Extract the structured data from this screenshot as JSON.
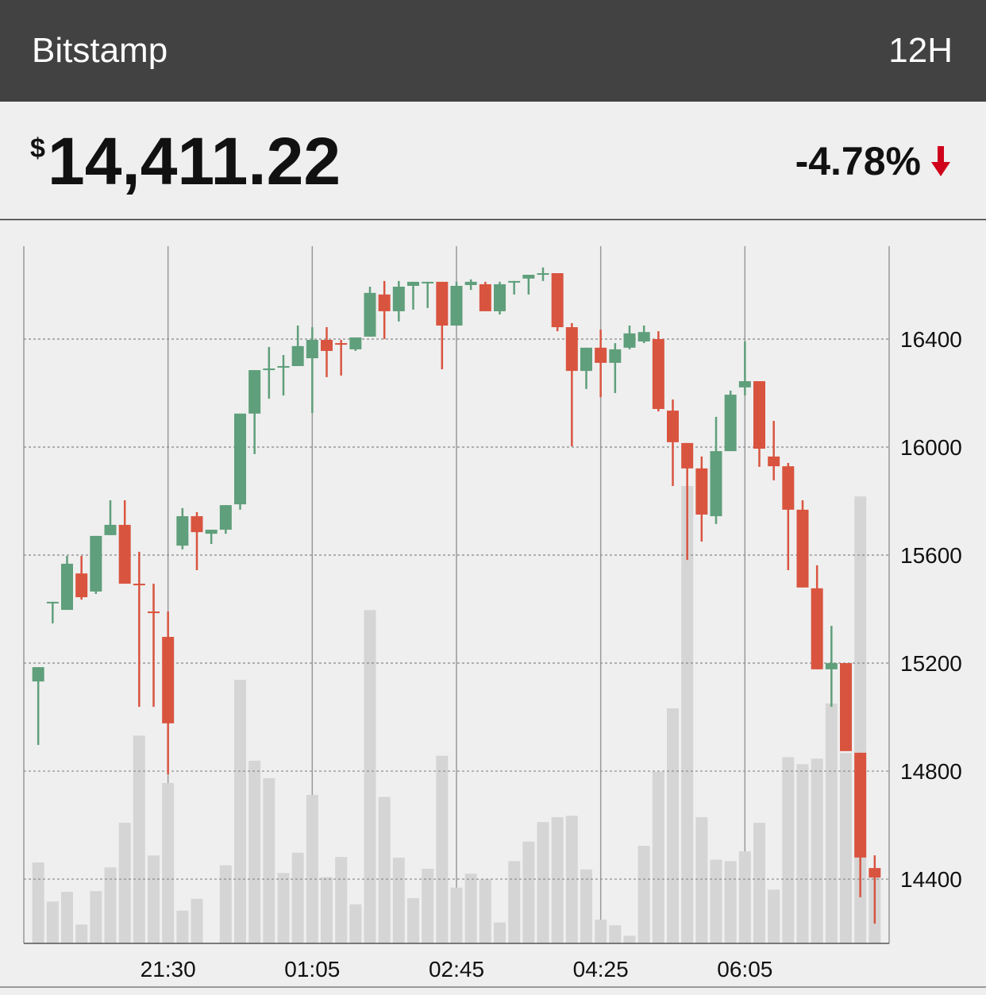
{
  "header": {
    "title": "Bitstamp",
    "range": "12H",
    "currency": "$",
    "price": "14,411.22",
    "change": "-4.78%"
  },
  "chart_data": {
    "type": "candlestick",
    "categories": [
      null,
      null,
      null,
      null,
      null,
      null,
      null,
      null,
      null,
      "21:30",
      null,
      null,
      null,
      null,
      null,
      null,
      null,
      null,
      null,
      "01:05",
      null,
      null,
      null,
      null,
      null,
      null,
      null,
      null,
      null,
      "02:45",
      null,
      null,
      null,
      null,
      null,
      null,
      null,
      null,
      null,
      "04:25",
      null,
      null,
      null,
      null,
      null,
      null,
      null,
      null,
      null,
      "06:05",
      null,
      null,
      null,
      null,
      null,
      null,
      null,
      null,
      null
    ],
    "open": [
      15132,
      15421,
      15397,
      15532,
      15465,
      15674,
      15712,
      15494,
      15391,
      15297,
      15635,
      15744,
      15679,
      15694,
      15788,
      16124,
      16285,
      16294,
      16300,
      16329,
      16397,
      16385,
      16362,
      16409,
      16565,
      16503,
      16597,
      16606,
      16612,
      16450,
      16600,
      16603,
      16503,
      16609,
      16624,
      16638,
      16644,
      16444,
      16282,
      16368,
      16312,
      16368,
      16391,
      16400,
      16135,
      16015,
      15921,
      15744,
      15985,
      16221,
      16244,
      15965,
      15929,
      15768,
      15477,
      15177,
      15200,
      14868,
      14441
    ],
    "high": [
      15185,
      15427,
      15597,
      15597,
      15671,
      15803,
      15803,
      15612,
      15494,
      15391,
      15774,
      15759,
      15694,
      15785,
      16124,
      16285,
      16371,
      16341,
      16450,
      16444,
      16444,
      16397,
      16406,
      16594,
      16615,
      16615,
      16612,
      16612,
      16612,
      16612,
      16621,
      16612,
      16612,
      16615,
      16638,
      16665,
      16644,
      16459,
      16368,
      16435,
      16385,
      16450,
      16450,
      16429,
      16176,
      16015,
      15965,
      16112,
      16209,
      16391,
      16244,
      16097,
      15941,
      15803,
      15562,
      15338,
      15200,
      14868,
      14488
    ],
    "low": [
      14897,
      15347,
      15397,
      15435,
      15456,
      15674,
      15494,
      15038,
      15038,
      14788,
      15621,
      15544,
      15641,
      15679,
      15768,
      15974,
      16179,
      16191,
      16300,
      16126,
      16259,
      16265,
      16356,
      16409,
      16400,
      16465,
      16509,
      16515,
      16288,
      16450,
      16582,
      16503,
      16491,
      16565,
      16565,
      16615,
      16429,
      16003,
      16215,
      16185,
      16200,
      16362,
      16385,
      16132,
      15856,
      15582,
      15650,
      15715,
      15985,
      16191,
      15927,
      15877,
      15544,
      15480,
      15177,
      15038,
      14874,
      14333,
      14235
    ],
    "close": [
      15185,
      15427,
      15568,
      15444,
      15671,
      15712,
      15494,
      15488,
      15385,
      14977,
      15744,
      15685,
      15694,
      15785,
      16124,
      16285,
      16291,
      16300,
      16374,
      16397,
      16356,
      16379,
      16406,
      16571,
      16503,
      16594,
      16612,
      16612,
      16450,
      16597,
      16612,
      16503,
      16603,
      16615,
      16638,
      16644,
      16444,
      16282,
      16368,
      16312,
      16362,
      16421,
      16426,
      16141,
      16018,
      15921,
      15750,
      15985,
      16194,
      16244,
      15994,
      15929,
      15768,
      15480,
      15177,
      15200,
      14874,
      14480,
      14406
    ],
    "volume": [
      11.6,
      6.0,
      7.4,
      2.7,
      7.5,
      10.9,
      17.3,
      29.8,
      12.6,
      23.0,
      4.7,
      6.4,
      0,
      11.2,
      37.8,
      26.2,
      23.7,
      10.1,
      13.0,
      21.3,
      9.5,
      12.4,
      5.6,
      47.8,
      21.0,
      12.3,
      6.5,
      10.7,
      26.9,
      8.0,
      10.0,
      9.2,
      3.0,
      11.8,
      14.6,
      17.4,
      18.1,
      18.3,
      10.6,
      3.4,
      2.6,
      1.1,
      14.0,
      24.6,
      33.7,
      65.6,
      18.1,
      12.0,
      11.8,
      13.2,
      17.3,
      7.7,
      26.7,
      25.7,
      26.5,
      34.4,
      27.3,
      64.1,
      9.5
    ],
    "ylim": [
      14162,
      16744
    ],
    "yticks": [
      14400,
      14800,
      15200,
      15600,
      16000,
      16400
    ],
    "y2lim": [
      0,
      100
    ],
    "up_color": "#5f9f7b",
    "down_color": "#d9543f",
    "volume_color": "#d5d5d5",
    "grid": true
  }
}
